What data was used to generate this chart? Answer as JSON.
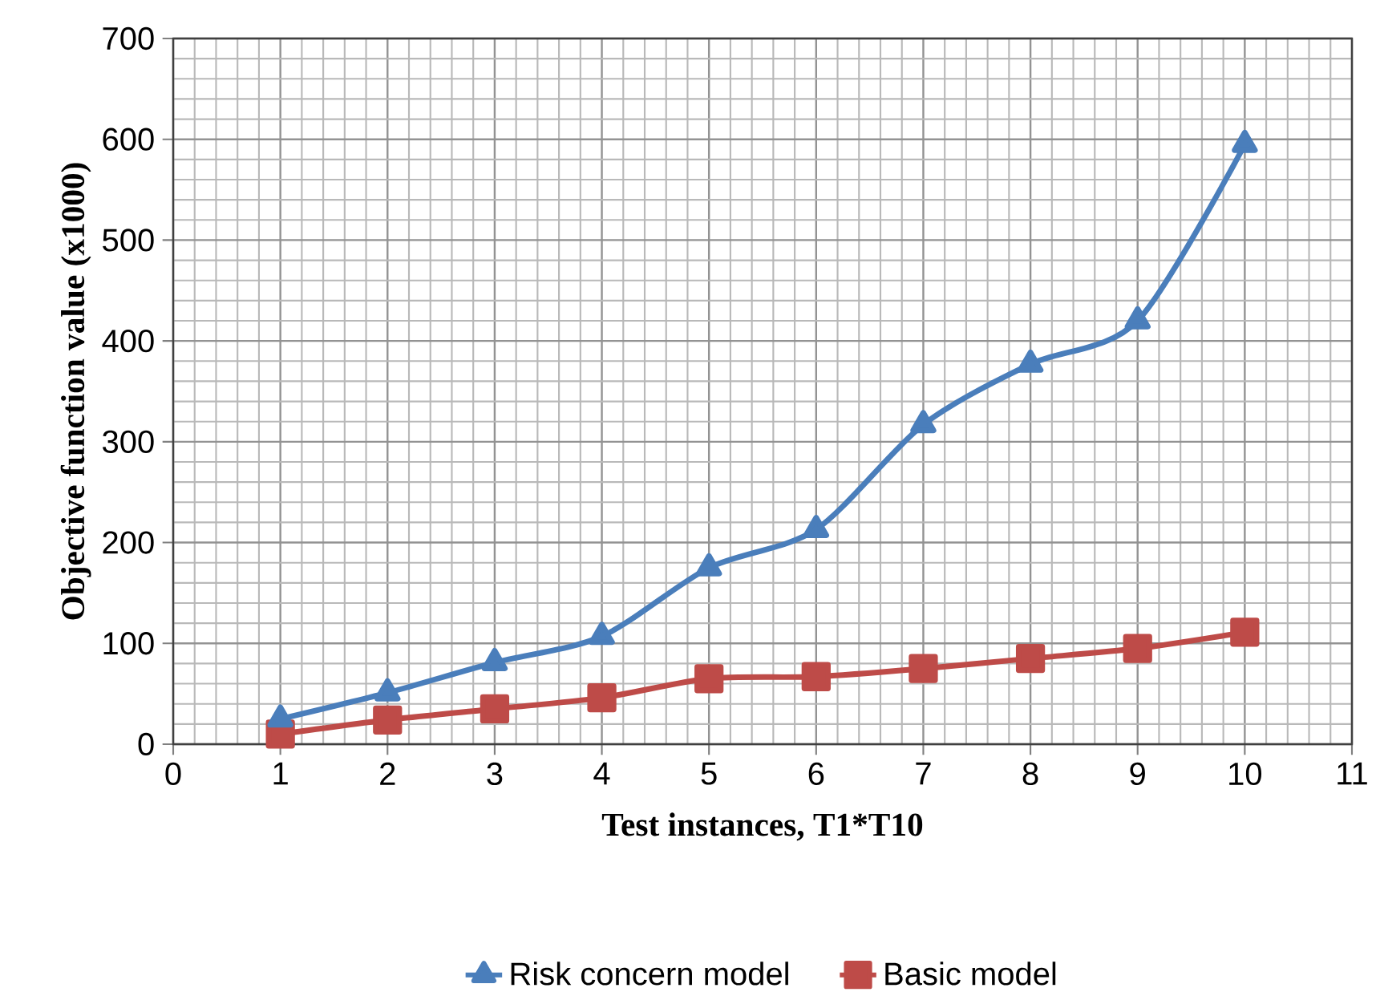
{
  "chart_data": {
    "type": "line",
    "xlabel": "Test instances, T1*T10",
    "ylabel": "Objective function value (x1000)",
    "x": [
      1,
      2,
      3,
      4,
      5,
      6,
      7,
      8,
      9,
      10
    ],
    "series": [
      {
        "name": "Risk concern model",
        "color": "#4a7ebb",
        "marker": "triangle",
        "values": [
          25,
          51,
          81,
          107,
          175,
          213,
          317,
          377,
          420,
          595
        ]
      },
      {
        "name": "Basic model",
        "color": "#be4b48",
        "marker": "square",
        "values": [
          10,
          24,
          35,
          46,
          65,
          67,
          75,
          85,
          95,
          111
        ]
      }
    ],
    "xlim": [
      0,
      11
    ],
    "xticks": [
      0,
      1,
      2,
      3,
      4,
      5,
      6,
      7,
      8,
      9,
      10,
      11
    ],
    "ylim": [
      0,
      700
    ],
    "yticks": [
      0,
      100,
      200,
      300,
      400,
      500,
      600,
      700
    ],
    "grid": true,
    "legend": "bottom",
    "line_style": "solid"
  }
}
